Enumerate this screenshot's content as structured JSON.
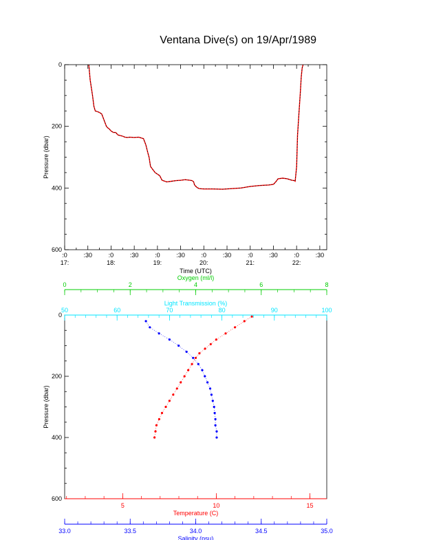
{
  "title": "Ventana Dive(s) on 19/Apr/1989",
  "colors": {
    "axis": "#000000",
    "temperature": "#ff0000",
    "salinity": "#0000ff",
    "oxygen": "#00cc00",
    "light": "#00e5ff",
    "trace_black": "#000000",
    "trace_red": "#ff0000"
  },
  "chart_data": [
    {
      "type": "line",
      "name": "time-pressure",
      "xlabel": "Time (UTC)",
      "ylabel": "Pressure (dbar)",
      "ylim": [
        0,
        600
      ],
      "y_inverted": true,
      "y_ticks": [
        0,
        200,
        400,
        600
      ],
      "x_tick_labels": [
        {
          "t": 17.0,
          "top": ":0",
          "bottom": "17:"
        },
        {
          "t": 17.5,
          "top": ":30",
          "bottom": ""
        },
        {
          "t": 18.0,
          "top": ":0",
          "bottom": "18:"
        },
        {
          "t": 18.5,
          "top": ":30",
          "bottom": ""
        },
        {
          "t": 19.0,
          "top": ":0",
          "bottom": "19:"
        },
        {
          "t": 19.5,
          "top": ":30",
          "bottom": ""
        },
        {
          "t": 20.0,
          "top": ":0",
          "bottom": "20:"
        },
        {
          "t": 20.5,
          "top": ":30",
          "bottom": ""
        },
        {
          "t": 21.0,
          "top": ":0",
          "bottom": "21:"
        },
        {
          "t": 21.5,
          "top": ":30",
          "bottom": ""
        },
        {
          "t": 22.0,
          "top": ":0",
          "bottom": "22:"
        },
        {
          "t": 22.5,
          "top": ":30",
          "bottom": ""
        }
      ],
      "xlim": [
        17.0,
        22.65
      ],
      "series": [
        {
          "x": [
            17.52,
            17.55,
            17.6,
            17.63,
            17.66,
            17.7,
            17.75,
            17.8,
            17.85,
            17.9,
            17.93,
            17.96,
            18.0,
            18.05,
            18.1,
            18.15,
            18.2,
            18.25,
            18.3,
            18.35,
            18.4,
            18.5,
            18.6,
            18.7,
            18.75,
            18.8,
            18.82,
            18.85,
            18.9,
            18.95,
            19.0,
            19.05,
            19.1,
            19.2,
            19.3,
            19.4,
            19.5,
            19.6,
            19.7,
            19.75,
            19.78,
            19.8,
            19.85,
            19.9,
            20.0,
            20.2,
            20.4,
            20.6,
            20.8,
            21.0,
            21.2,
            21.4,
            21.5,
            21.55,
            21.6,
            21.7,
            21.8,
            21.9,
            21.95,
            21.97,
            22.0,
            22.02,
            22.05,
            22.08,
            22.1,
            22.12,
            22.14
          ],
          "y": [
            0,
            50,
            100,
            135,
            150,
            152,
            155,
            160,
            180,
            200,
            205,
            208,
            215,
            220,
            220,
            228,
            230,
            232,
            235,
            236,
            235,
            236,
            235,
            240,
            260,
            290,
            300,
            330,
            340,
            350,
            355,
            360,
            375,
            380,
            378,
            376,
            375,
            373,
            375,
            376,
            380,
            390,
            398,
            402,
            403,
            403,
            404,
            402,
            400,
            395,
            392,
            390,
            388,
            380,
            370,
            368,
            370,
            375,
            376,
            378,
            330,
            230,
            160,
            90,
            40,
            10,
            0
          ]
        }
      ]
    },
    {
      "type": "scatter",
      "name": "depth-profile",
      "ylabel": "Pressure (dbar)",
      "ylim": [
        0,
        600
      ],
      "y_inverted": true,
      "y_ticks": [
        0,
        200,
        400,
        600
      ],
      "axes": [
        {
          "label": "Oxygen (ml/l)",
          "position": "top",
          "range": [
            0,
            8
          ],
          "ticks": [
            0,
            2,
            4,
            6,
            8
          ],
          "color": "#00cc00"
        },
        {
          "label": "Light Transmission (%)",
          "position": "top",
          "range": [
            50,
            100
          ],
          "ticks": [
            50,
            60,
            70,
            80,
            90,
            100
          ],
          "color": "#00e5ff"
        },
        {
          "label": "Temperature (C)",
          "position": "bottom",
          "range": [
            1.9,
            15.9
          ],
          "ticks": [
            5,
            10,
            15
          ],
          "color": "#ff0000"
        },
        {
          "label": "Salinity (psu)",
          "position": "bottom",
          "range": [
            33.0,
            35.0
          ],
          "ticks": [
            "33.0",
            "33.5",
            "34.0",
            "34.5",
            "35.0"
          ],
          "color": "#0000ff"
        }
      ],
      "series": [
        {
          "name": "Temperature",
          "axis": "Temperature (C)",
          "color": "#ff0000",
          "x": [
            11.9,
            11.5,
            11.0,
            10.5,
            10.0,
            9.7,
            9.4,
            9.1,
            8.9,
            8.7,
            8.5,
            8.3,
            8.1,
            7.9,
            7.7,
            7.5,
            7.3,
            7.1,
            6.95,
            6.8,
            6.75,
            6.7
          ],
          "y": [
            5,
            20,
            40,
            60,
            80,
            95,
            110,
            125,
            140,
            160,
            180,
            200,
            220,
            240,
            260,
            280,
            300,
            320,
            340,
            360,
            380,
            400
          ]
        },
        {
          "name": "Salinity",
          "axis": "Salinity (psu)",
          "color": "#0000ff",
          "x": [
            33.62,
            33.65,
            33.72,
            33.8,
            33.87,
            33.93,
            33.98,
            34.02,
            34.05,
            34.07,
            34.09,
            34.11,
            34.12,
            34.13,
            34.14,
            34.145,
            34.15,
            34.15,
            34.16,
            34.16
          ],
          "y": [
            20,
            40,
            60,
            80,
            100,
            120,
            140,
            160,
            180,
            200,
            220,
            240,
            260,
            280,
            300,
            320,
            340,
            360,
            380,
            400
          ]
        }
      ]
    }
  ]
}
